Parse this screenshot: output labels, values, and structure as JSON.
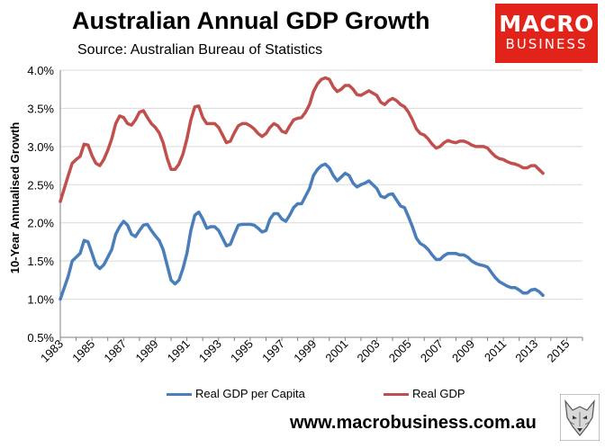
{
  "header": {
    "title": "Australian Annual GDP Growth",
    "subtitle": "Source: Australian Bureau of Statistics"
  },
  "logo": {
    "line1": "MACRO",
    "line2": "BUSINESS",
    "color": "#e2231a"
  },
  "footer": {
    "website": "www.macrobusiness.com.au",
    "mascot_icon": "wolf-head-icon"
  },
  "chart_data": {
    "type": "line",
    "title": "Australian Annual GDP Growth",
    "ylabel": "10-Year Annualised Growth",
    "xlabel": "",
    "xlim": [
      1983,
      2016
    ],
    "ylim": [
      0.5,
      4.0
    ],
    "yticks": [
      "0.5%",
      "1.0%",
      "1.5%",
      "2.0%",
      "2.5%",
      "3.0%",
      "3.5%",
      "4.0%"
    ],
    "xticks": [
      "1983",
      "1985",
      "1987",
      "1989",
      "1991",
      "1993",
      "1995",
      "1997",
      "1999",
      "2001",
      "2003",
      "2005",
      "2007",
      "2009",
      "2011",
      "2013",
      "2015"
    ],
    "grid": "horizontal",
    "legend": "bottom",
    "series": [
      {
        "name": "Real GDP per Capita",
        "color": "#4a7ebb",
        "points": [
          [
            1983.0,
            1.0
          ],
          [
            1983.25,
            1.15
          ],
          [
            1983.5,
            1.3
          ],
          [
            1983.75,
            1.5
          ],
          [
            1984.0,
            1.55
          ],
          [
            1984.25,
            1.6
          ],
          [
            1984.5,
            1.77
          ],
          [
            1984.75,
            1.75
          ],
          [
            1985.0,
            1.6
          ],
          [
            1985.25,
            1.45
          ],
          [
            1985.5,
            1.4
          ],
          [
            1985.75,
            1.45
          ],
          [
            1986.0,
            1.55
          ],
          [
            1986.25,
            1.65
          ],
          [
            1986.5,
            1.85
          ],
          [
            1986.75,
            1.95
          ],
          [
            1987.0,
            2.02
          ],
          [
            1987.25,
            1.97
          ],
          [
            1987.5,
            1.85
          ],
          [
            1987.75,
            1.82
          ],
          [
            1988.0,
            1.9
          ],
          [
            1988.25,
            1.97
          ],
          [
            1988.5,
            1.98
          ],
          [
            1988.75,
            1.9
          ],
          [
            1989.0,
            1.83
          ],
          [
            1989.25,
            1.77
          ],
          [
            1989.5,
            1.65
          ],
          [
            1989.75,
            1.45
          ],
          [
            1990.0,
            1.25
          ],
          [
            1990.25,
            1.2
          ],
          [
            1990.5,
            1.25
          ],
          [
            1990.75,
            1.4
          ],
          [
            1991.0,
            1.6
          ],
          [
            1991.25,
            1.9
          ],
          [
            1991.5,
            2.1
          ],
          [
            1991.75,
            2.14
          ],
          [
            1992.0,
            2.05
          ],
          [
            1992.25,
            1.93
          ],
          [
            1992.5,
            1.95
          ],
          [
            1992.75,
            1.95
          ],
          [
            1993.0,
            1.9
          ],
          [
            1993.25,
            1.8
          ],
          [
            1993.5,
            1.7
          ],
          [
            1993.75,
            1.72
          ],
          [
            1994.0,
            1.85
          ],
          [
            1994.25,
            1.97
          ],
          [
            1994.5,
            1.98
          ],
          [
            1994.75,
            1.98
          ],
          [
            1995.0,
            1.98
          ],
          [
            1995.25,
            1.97
          ],
          [
            1995.5,
            1.93
          ],
          [
            1995.75,
            1.88
          ],
          [
            1996.0,
            1.9
          ],
          [
            1996.25,
            2.05
          ],
          [
            1996.5,
            2.12
          ],
          [
            1996.75,
            2.12
          ],
          [
            1997.0,
            2.05
          ],
          [
            1997.25,
            2.02
          ],
          [
            1997.5,
            2.1
          ],
          [
            1997.75,
            2.2
          ],
          [
            1998.0,
            2.25
          ],
          [
            1998.25,
            2.25
          ],
          [
            1998.5,
            2.35
          ],
          [
            1998.75,
            2.45
          ],
          [
            1999.0,
            2.62
          ],
          [
            1999.25,
            2.7
          ],
          [
            1999.5,
            2.75
          ],
          [
            1999.75,
            2.77
          ],
          [
            2000.0,
            2.72
          ],
          [
            2000.25,
            2.62
          ],
          [
            2000.5,
            2.55
          ],
          [
            2000.75,
            2.6
          ],
          [
            2001.0,
            2.65
          ],
          [
            2001.25,
            2.62
          ],
          [
            2001.5,
            2.52
          ],
          [
            2001.75,
            2.47
          ],
          [
            2002.0,
            2.5
          ],
          [
            2002.25,
            2.52
          ],
          [
            2002.5,
            2.55
          ],
          [
            2002.75,
            2.5
          ],
          [
            2003.0,
            2.45
          ],
          [
            2003.25,
            2.35
          ],
          [
            2003.5,
            2.33
          ],
          [
            2003.75,
            2.37
          ],
          [
            2004.0,
            2.38
          ],
          [
            2004.25,
            2.3
          ],
          [
            2004.5,
            2.22
          ],
          [
            2004.75,
            2.2
          ],
          [
            2005.0,
            2.08
          ],
          [
            2005.25,
            1.95
          ],
          [
            2005.5,
            1.8
          ],
          [
            2005.75,
            1.73
          ],
          [
            2006.0,
            1.7
          ],
          [
            2006.25,
            1.65
          ],
          [
            2006.5,
            1.58
          ],
          [
            2006.75,
            1.52
          ],
          [
            2007.0,
            1.52
          ],
          [
            2007.25,
            1.57
          ],
          [
            2007.5,
            1.6
          ],
          [
            2007.75,
            1.6
          ],
          [
            2008.0,
            1.6
          ],
          [
            2008.25,
            1.58
          ],
          [
            2008.5,
            1.58
          ],
          [
            2008.75,
            1.55
          ],
          [
            2009.0,
            1.5
          ],
          [
            2009.25,
            1.47
          ],
          [
            2009.5,
            1.45
          ],
          [
            2009.75,
            1.44
          ],
          [
            2010.0,
            1.42
          ],
          [
            2010.25,
            1.35
          ],
          [
            2010.5,
            1.28
          ],
          [
            2010.75,
            1.23
          ],
          [
            2011.0,
            1.2
          ],
          [
            2011.25,
            1.17
          ],
          [
            2011.5,
            1.15
          ],
          [
            2011.75,
            1.15
          ],
          [
            2012.0,
            1.12
          ],
          [
            2012.25,
            1.08
          ],
          [
            2012.5,
            1.08
          ],
          [
            2012.75,
            1.12
          ],
          [
            2013.0,
            1.13
          ],
          [
            2013.25,
            1.1
          ],
          [
            2013.5,
            1.05
          ]
        ]
      },
      {
        "name": "Real GDP",
        "color": "#c0504d",
        "points": [
          [
            1983.0,
            2.28
          ],
          [
            1983.25,
            2.45
          ],
          [
            1983.5,
            2.62
          ],
          [
            1983.75,
            2.78
          ],
          [
            1984.0,
            2.83
          ],
          [
            1984.25,
            2.87
          ],
          [
            1984.5,
            3.03
          ],
          [
            1984.75,
            3.02
          ],
          [
            1985.0,
            2.88
          ],
          [
            1985.25,
            2.78
          ],
          [
            1985.5,
            2.75
          ],
          [
            1985.75,
            2.83
          ],
          [
            1986.0,
            2.95
          ],
          [
            1986.25,
            3.1
          ],
          [
            1986.5,
            3.3
          ],
          [
            1986.75,
            3.4
          ],
          [
            1987.0,
            3.38
          ],
          [
            1987.25,
            3.3
          ],
          [
            1987.5,
            3.28
          ],
          [
            1987.75,
            3.35
          ],
          [
            1988.0,
            3.45
          ],
          [
            1988.25,
            3.47
          ],
          [
            1988.5,
            3.38
          ],
          [
            1988.75,
            3.3
          ],
          [
            1989.0,
            3.25
          ],
          [
            1989.25,
            3.18
          ],
          [
            1989.5,
            3.05
          ],
          [
            1989.75,
            2.85
          ],
          [
            1990.0,
            2.7
          ],
          [
            1990.25,
            2.7
          ],
          [
            1990.5,
            2.77
          ],
          [
            1990.75,
            2.9
          ],
          [
            1991.0,
            3.1
          ],
          [
            1991.25,
            3.35
          ],
          [
            1991.5,
            3.52
          ],
          [
            1991.75,
            3.53
          ],
          [
            1992.0,
            3.38
          ],
          [
            1992.25,
            3.3
          ],
          [
            1992.5,
            3.3
          ],
          [
            1992.75,
            3.3
          ],
          [
            1993.0,
            3.25
          ],
          [
            1993.25,
            3.15
          ],
          [
            1993.5,
            3.05
          ],
          [
            1993.75,
            3.07
          ],
          [
            1994.0,
            3.18
          ],
          [
            1994.25,
            3.27
          ],
          [
            1994.5,
            3.3
          ],
          [
            1994.75,
            3.3
          ],
          [
            1995.0,
            3.27
          ],
          [
            1995.25,
            3.23
          ],
          [
            1995.5,
            3.17
          ],
          [
            1995.75,
            3.13
          ],
          [
            1996.0,
            3.17
          ],
          [
            1996.25,
            3.25
          ],
          [
            1996.5,
            3.3
          ],
          [
            1996.75,
            3.27
          ],
          [
            1997.0,
            3.2
          ],
          [
            1997.25,
            3.18
          ],
          [
            1997.5,
            3.27
          ],
          [
            1997.75,
            3.35
          ],
          [
            1998.0,
            3.37
          ],
          [
            1998.25,
            3.38
          ],
          [
            1998.5,
            3.45
          ],
          [
            1998.75,
            3.55
          ],
          [
            1999.0,
            3.72
          ],
          [
            1999.25,
            3.82
          ],
          [
            1999.5,
            3.88
          ],
          [
            1999.75,
            3.9
          ],
          [
            2000.0,
            3.88
          ],
          [
            2000.25,
            3.78
          ],
          [
            2000.5,
            3.72
          ],
          [
            2000.75,
            3.75
          ],
          [
            2001.0,
            3.8
          ],
          [
            2001.25,
            3.8
          ],
          [
            2001.5,
            3.75
          ],
          [
            2001.75,
            3.68
          ],
          [
            2002.0,
            3.67
          ],
          [
            2002.25,
            3.7
          ],
          [
            2002.5,
            3.73
          ],
          [
            2002.75,
            3.7
          ],
          [
            2003.0,
            3.67
          ],
          [
            2003.25,
            3.58
          ],
          [
            2003.5,
            3.55
          ],
          [
            2003.75,
            3.6
          ],
          [
            2004.0,
            3.63
          ],
          [
            2004.25,
            3.6
          ],
          [
            2004.5,
            3.55
          ],
          [
            2004.75,
            3.52
          ],
          [
            2005.0,
            3.45
          ],
          [
            2005.25,
            3.35
          ],
          [
            2005.5,
            3.23
          ],
          [
            2005.75,
            3.17
          ],
          [
            2006.0,
            3.15
          ],
          [
            2006.25,
            3.1
          ],
          [
            2006.5,
            3.03
          ],
          [
            2006.75,
            2.98
          ],
          [
            2007.0,
            3.0
          ],
          [
            2007.25,
            3.05
          ],
          [
            2007.5,
            3.08
          ],
          [
            2007.75,
            3.06
          ],
          [
            2008.0,
            3.05
          ],
          [
            2008.25,
            3.07
          ],
          [
            2008.5,
            3.07
          ],
          [
            2008.75,
            3.05
          ],
          [
            2009.0,
            3.02
          ],
          [
            2009.25,
            3.0
          ],
          [
            2009.5,
            3.0
          ],
          [
            2009.75,
            3.0
          ],
          [
            2010.0,
            2.98
          ],
          [
            2010.25,
            2.92
          ],
          [
            2010.5,
            2.87
          ],
          [
            2010.75,
            2.84
          ],
          [
            2011.0,
            2.83
          ],
          [
            2011.25,
            2.8
          ],
          [
            2011.5,
            2.78
          ],
          [
            2011.75,
            2.77
          ],
          [
            2012.0,
            2.75
          ],
          [
            2012.25,
            2.72
          ],
          [
            2012.5,
            2.72
          ],
          [
            2012.75,
            2.75
          ],
          [
            2013.0,
            2.75
          ],
          [
            2013.25,
            2.7
          ],
          [
            2013.5,
            2.65
          ]
        ]
      }
    ]
  }
}
